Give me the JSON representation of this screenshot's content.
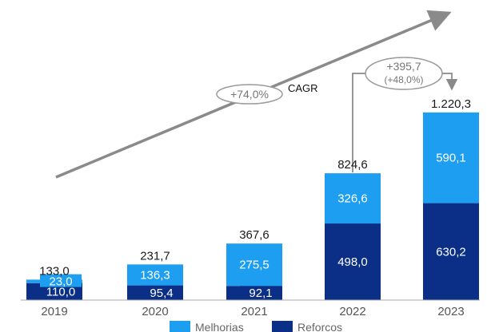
{
  "chart_data": {
    "type": "bar",
    "stacked": true,
    "categories": [
      "2019",
      "2020",
      "2021",
      "2022",
      "2023"
    ],
    "series": [
      {
        "name": "Reforcos",
        "color": "#0b2f86",
        "values": [
          110.0,
          95.4,
          92.1,
          498.0,
          630.2
        ],
        "labels": [
          "110,0",
          "95,4",
          "92,1",
          "498,0",
          "630,2"
        ]
      },
      {
        "name": "Melhorias",
        "color": "#1e9ef0",
        "values": [
          23.0,
          136.3,
          275.5,
          326.6,
          590.1
        ],
        "labels": [
          "23,0",
          "136,3",
          "275,5",
          "326,6",
          "590,1"
        ]
      }
    ],
    "totals": [
      133.0,
      231.7,
      367.6,
      824.6,
      1220.3
    ],
    "total_labels": [
      "133,0",
      "231,7",
      "367,6",
      "824,6",
      "1.220,3"
    ],
    "annotations": {
      "cagr_value": "+74,0%",
      "cagr_label": "CAGR",
      "delta_value": "+395,7",
      "delta_pct": "(+48,0%)"
    },
    "legend": [
      "Melhorias",
      "Reforcos"
    ],
    "legend_position": "bottom",
    "grid": false
  }
}
